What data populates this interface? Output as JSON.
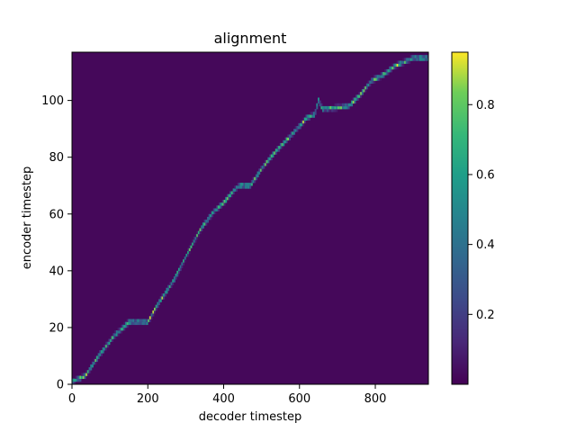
{
  "chart_data": {
    "type": "heatmap",
    "title": "alignment",
    "xlabel": "decoder timestep",
    "ylabel": "encoder timestep",
    "xlim": [
      0,
      940
    ],
    "ylim": [
      0,
      117
    ],
    "xticks": [
      0,
      200,
      400,
      600,
      800
    ],
    "yticks": [
      0,
      20,
      40,
      60,
      80,
      100
    ],
    "colormap": "viridis",
    "colorbar": {
      "range": [
        0.0,
        0.95
      ],
      "ticks": [
        0.2,
        0.4,
        0.6,
        0.8
      ]
    },
    "alignment_path": [
      {
        "decoder": 0,
        "encoder": 1
      },
      {
        "decoder": 35,
        "encoder": 3
      },
      {
        "decoder": 70,
        "encoder": 10
      },
      {
        "decoder": 110,
        "encoder": 17
      },
      {
        "decoder": 135,
        "encoder": 20
      },
      {
        "decoder": 150,
        "encoder": 22
      },
      {
        "decoder": 200,
        "encoder": 22
      },
      {
        "decoder": 225,
        "encoder": 28
      },
      {
        "decoder": 270,
        "encoder": 37
      },
      {
        "decoder": 300,
        "encoder": 45
      },
      {
        "decoder": 340,
        "encoder": 55
      },
      {
        "decoder": 375,
        "encoder": 61
      },
      {
        "decoder": 400,
        "encoder": 64
      },
      {
        "decoder": 425,
        "encoder": 68
      },
      {
        "decoder": 440,
        "encoder": 70
      },
      {
        "decoder": 470,
        "encoder": 70
      },
      {
        "decoder": 500,
        "encoder": 76
      },
      {
        "decoder": 530,
        "encoder": 81
      },
      {
        "decoder": 565,
        "encoder": 86
      },
      {
        "decoder": 600,
        "encoder": 91
      },
      {
        "decoder": 620,
        "encoder": 94
      },
      {
        "decoder": 640,
        "encoder": 95
      },
      {
        "decoder": 650,
        "encoder": 100
      },
      {
        "decoder": 660,
        "encoder": 97
      },
      {
        "decoder": 730,
        "encoder": 98
      },
      {
        "decoder": 760,
        "encoder": 102
      },
      {
        "decoder": 790,
        "encoder": 107
      },
      {
        "decoder": 820,
        "encoder": 109
      },
      {
        "decoder": 850,
        "encoder": 112
      },
      {
        "decoder": 900,
        "encoder": 115
      }
    ],
    "background_value": 0.02
  }
}
